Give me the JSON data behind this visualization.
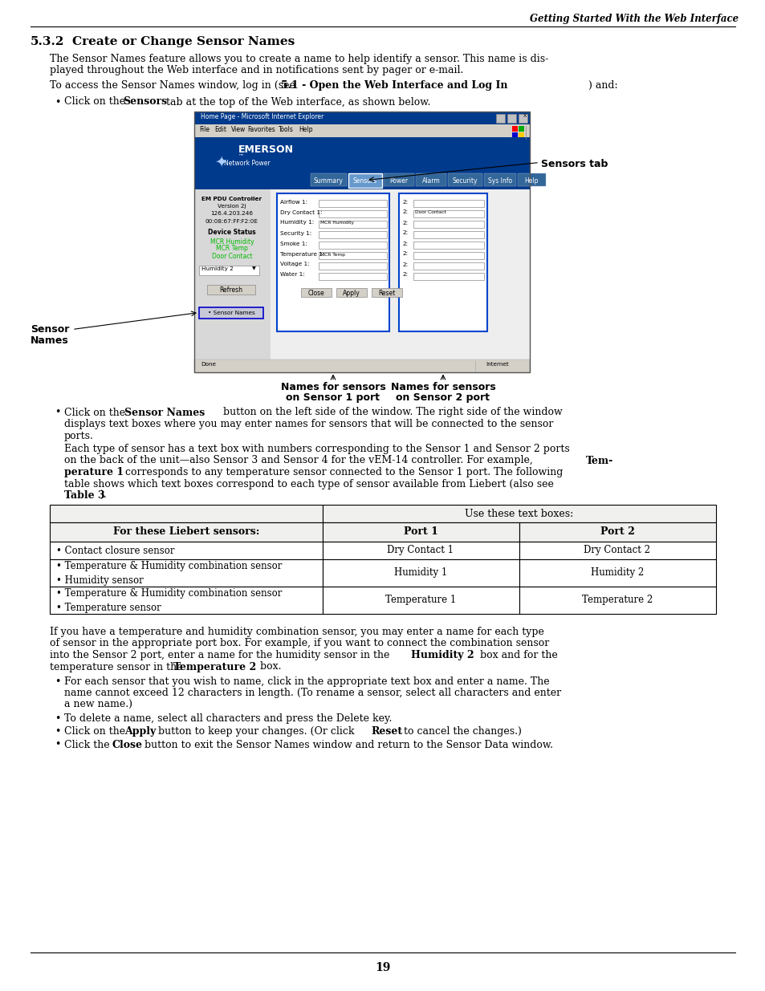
{
  "page_header_right": "Getting Started With the Web Interface",
  "section_number": "5.3.2",
  "section_title": "Create or Change Sensor Names",
  "page_number": "19",
  "bg_color": "#ffffff"
}
